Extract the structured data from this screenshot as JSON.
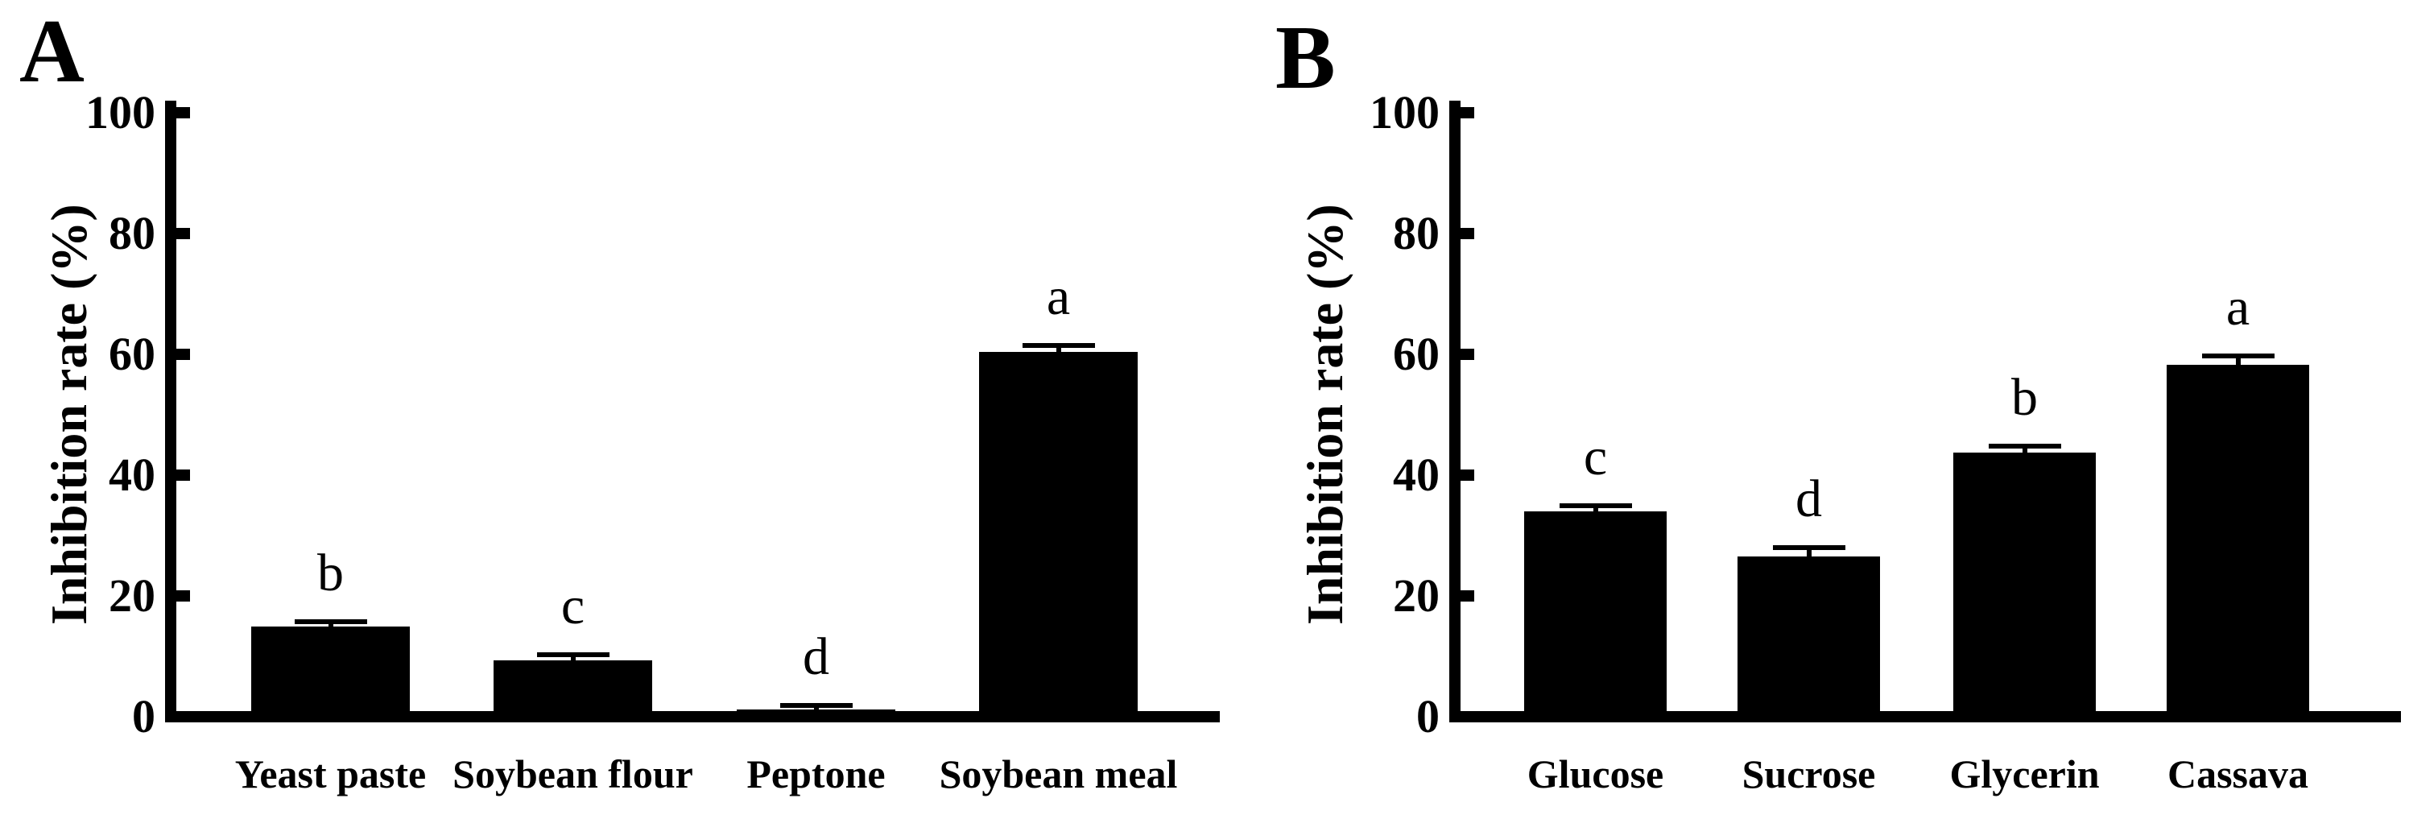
{
  "figure": {
    "background_color": "#ffffff",
    "ink_color": "#000000"
  },
  "chart_data": [
    {
      "type": "bar",
      "panel_label": "A",
      "title": "",
      "xlabel": "",
      "ylabel": "Inhibition rate (%)",
      "ylim": [
        0,
        100
      ],
      "yticks": [
        0,
        20,
        40,
        60,
        80,
        100
      ],
      "grid": false,
      "legend": null,
      "bar_color": "#000000",
      "categories": [
        "Yeast paste",
        "Soybean flour",
        "Peptone",
        "Soybean meal"
      ],
      "values": [
        14.9,
        9.3,
        1.2,
        60.4
      ],
      "errors": [
        0.8,
        1.0,
        0.7,
        1.1
      ],
      "sig_letters": [
        "b",
        "c",
        "d",
        "a"
      ]
    },
    {
      "type": "bar",
      "panel_label": "B",
      "title": "",
      "xlabel": "",
      "ylabel": "Inhibition rate (%)",
      "ylim": [
        0,
        100
      ],
      "yticks": [
        0,
        20,
        40,
        60,
        80,
        100
      ],
      "grid": false,
      "legend": null,
      "bar_color": "#000000",
      "categories": [
        "Glucose",
        "Sucrose",
        "Glycerin",
        "Cassava"
      ],
      "values": [
        34.0,
        26.5,
        43.7,
        58.3
      ],
      "errors": [
        0.9,
        1.5,
        1.1,
        1.4
      ],
      "sig_letters": [
        "c",
        "d",
        "b",
        "a"
      ]
    }
  ]
}
